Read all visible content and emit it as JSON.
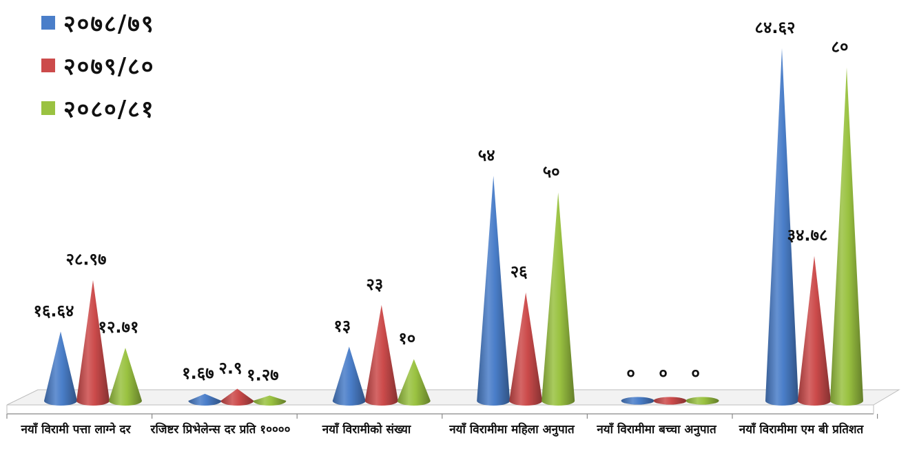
{
  "chart_data": {
    "type": "bar",
    "categories": [
      "नयाँ विरामी पत्ता लाग्ने दर",
      "रजिष्टर प्रिभेलेन्स दर प्रति १००००",
      "नयाँ विरामीको संख्या",
      "नयाँ विरामीमा महिला अनुपात",
      "नयाँ विरामीमा बच्चा अनुपात",
      "नयाँ विरामीमा एम बी प्रतिशत"
    ],
    "series": [
      {
        "name": "२०७८/७९",
        "color": "#4a7ec9",
        "values": [
          16.64,
          1.67,
          13,
          54,
          0,
          84.62
        ],
        "labels": [
          "१६.६४",
          "१.६७",
          "१३",
          "५४",
          "०",
          "८४.६२"
        ]
      },
      {
        "name": "२०७९/८०",
        "color": "#cc4b4b",
        "values": [
          28.97,
          2.9,
          23,
          26,
          0,
          34.78
        ],
        "labels": [
          "२८.९७",
          "२.९",
          "२३",
          "२६",
          "०",
          "३४.७८"
        ]
      },
      {
        "name": "२०८०/८१",
        "color": "#9ac241",
        "values": [
          12.71,
          1.27,
          10,
          50,
          0,
          80
        ],
        "labels": [
          "१२.७१",
          "१.२७",
          "१०",
          "५०",
          "०",
          "८०"
        ]
      }
    ],
    "ylim": [
      0,
      90
    ],
    "grid": false,
    "legend": "top-left",
    "shape": "cone"
  }
}
